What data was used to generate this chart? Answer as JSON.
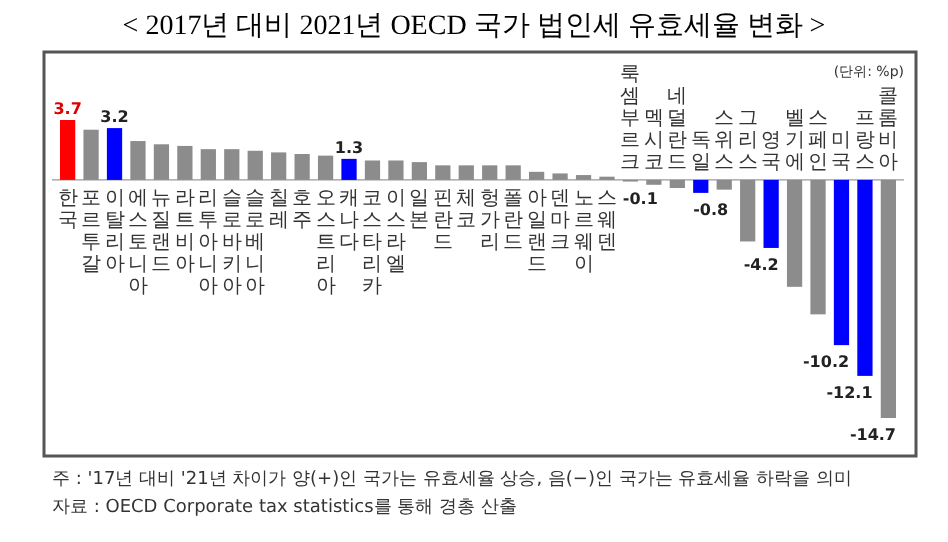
{
  "chart_data": {
    "type": "bar",
    "title": "< 2017년 대비 2021년 OECD 국가 법인세 유효세율 변화 >",
    "categories": [
      "한국",
      "포르투갈",
      "이탈리아",
      "에스토니아",
      "뉴질랜드",
      "라트비아",
      "리투아니아",
      "슬로바키아",
      "슬로베니아",
      "칠레",
      "호주",
      "오스트리아",
      "캐나다",
      "코스타리카",
      "이스라엘",
      "일본",
      "핀란드",
      "체코",
      "헝가리",
      "폴란드",
      "아일랜드",
      "덴마크",
      "노르웨이",
      "스웨덴",
      "룩셈부르크",
      "멕시코",
      "네덜란드",
      "독일",
      "스위스",
      "그리스",
      "영국",
      "벨기에",
      "스페인",
      "미국",
      "프랑스",
      "콜롬비아"
    ],
    "values": [
      3.7,
      3.1,
      3.2,
      2.4,
      2.2,
      2.1,
      1.9,
      1.9,
      1.8,
      1.7,
      1.6,
      1.5,
      1.3,
      1.2,
      1.2,
      1.1,
      0.9,
      0.9,
      0.9,
      0.9,
      0.5,
      0.4,
      0.3,
      0.2,
      -0.1,
      -0.3,
      -0.5,
      -0.8,
      -0.6,
      -3.8,
      -4.2,
      -6.6,
      -8.3,
      -10.2,
      -12.1,
      -14.7
    ],
    "colors": [
      "#ff0000",
      "#8c8c8c",
      "#0000ff",
      "#8c8c8c",
      "#8c8c8c",
      "#8c8c8c",
      "#8c8c8c",
      "#8c8c8c",
      "#8c8c8c",
      "#8c8c8c",
      "#8c8c8c",
      "#8c8c8c",
      "#0000ff",
      "#8c8c8c",
      "#8c8c8c",
      "#8c8c8c",
      "#8c8c8c",
      "#8c8c8c",
      "#8c8c8c",
      "#8c8c8c",
      "#8c8c8c",
      "#8c8c8c",
      "#8c8c8c",
      "#8c8c8c",
      "#8c8c8c",
      "#8c8c8c",
      "#8c8c8c",
      "#0000ff",
      "#8c8c8c",
      "#8c8c8c",
      "#0000ff",
      "#8c8c8c",
      "#8c8c8c",
      "#0000ff",
      "#0000ff",
      "#8c8c8c"
    ],
    "value_labels": [
      "3.7",
      null,
      "3.2",
      null,
      null,
      null,
      null,
      null,
      null,
      null,
      null,
      null,
      "1.3",
      null,
      null,
      null,
      null,
      null,
      null,
      null,
      null,
      null,
      null,
      null,
      "-0.1",
      null,
      null,
      "-0.8",
      null,
      null,
      "-4.2",
      null,
      null,
      "-10.2",
      "-12.1",
      "-14.7"
    ],
    "annotations": [
      "(단위: %p)",
      "주 : '17년 대비 '21년 차이가 양(+)인 국가는 유효세율 상승, 음(−)인 국가는 유효세율 하락을 의미",
      "자료 : OECD Corporate tax statistics를 통해 경총 산출"
    ]
  }
}
